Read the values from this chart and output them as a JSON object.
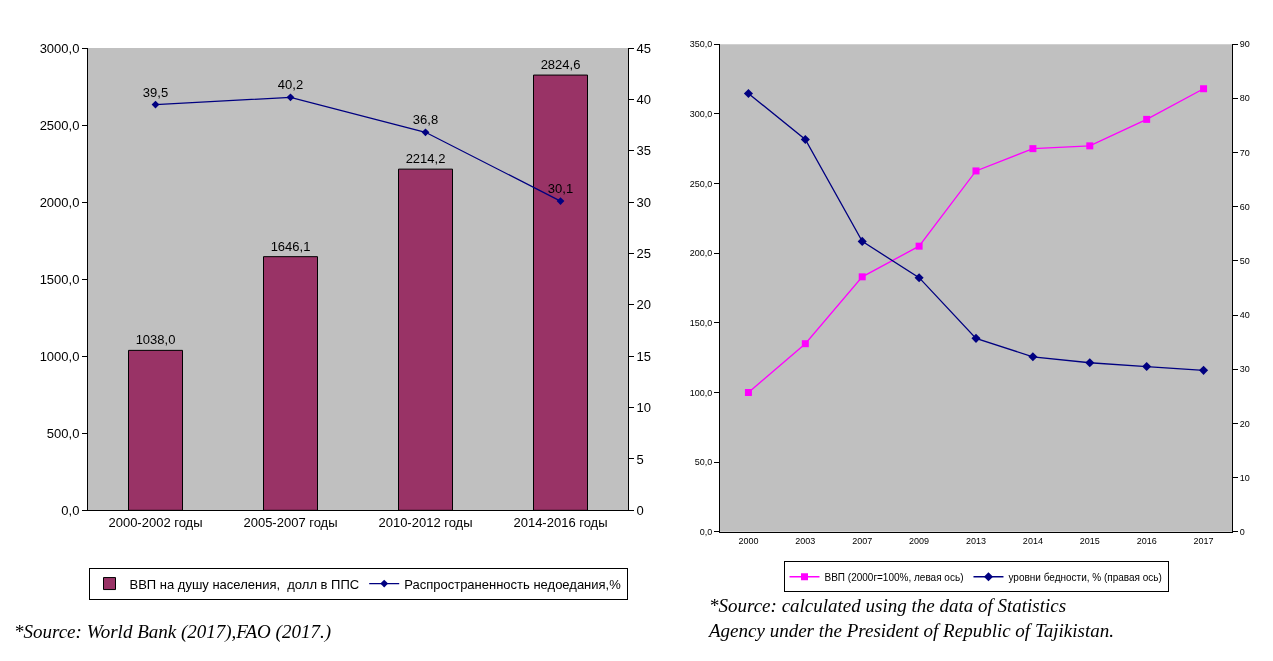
{
  "chart_data": [
    {
      "type": "bar",
      "categories": [
        "2000-2002 годы",
        "2005-2007 годы",
        "2010-2012 годы",
        "2014-2016 годы"
      ],
      "series": [
        {
          "name": "ВВП на душу населения,  долл в ППС",
          "color": "#993366",
          "values": [
            1038.0,
            1646.1,
            2214.2,
            2824.6
          ],
          "value_labels": [
            "1038,0",
            "1646,1",
            "2214,2",
            "2824,6"
          ]
        },
        {
          "name": "Распространенность недоедания,%",
          "type": "line",
          "axis": "y2",
          "color": "#000080",
          "marker": "diamond",
          "values": [
            39.5,
            40.2,
            36.8,
            30.1
          ],
          "value_labels": [
            "39,5",
            "40,2",
            "36,8",
            "30,1"
          ]
        }
      ],
      "ylim": [
        0,
        3000
      ],
      "yticks": [
        {
          "value": 0,
          "label": "0,0"
        },
        {
          "value": 500,
          "label": "500,0"
        },
        {
          "value": 1000,
          "label": "1000,0"
        },
        {
          "value": 1500,
          "label": "1500,0"
        },
        {
          "value": 2000,
          "label": "2000,0"
        },
        {
          "value": 2500,
          "label": "2500,0"
        },
        {
          "value": 3000,
          "label": "3000,0"
        }
      ],
      "y2lim": [
        0,
        45
      ],
      "y2ticks": [
        0,
        5,
        10,
        15,
        20,
        25,
        30,
        35,
        40,
        45
      ],
      "grid": false,
      "legend": "bottom",
      "annotations": [
        "*Source: World Bank (2017),FAO (2017.)"
      ]
    },
    {
      "type": "line",
      "categories": [
        "2000",
        "2003",
        "2007",
        "2009",
        "2013",
        "2014",
        "2015",
        "2016",
        "2017"
      ],
      "series": [
        {
          "name": "ВВП (2000г=100%, левая ось)",
          "color": "#ff00ff",
          "marker": "square",
          "values": [
            100,
            135,
            183,
            205,
            259,
            275,
            277,
            296,
            318
          ]
        },
        {
          "name": "уровни бедности, % (правая ось)",
          "axis": "y2",
          "color": "#000080",
          "marker": "diamond",
          "values": [
            80.9,
            72.4,
            53.6,
            46.9,
            35.7,
            32.3,
            31.2,
            30.5,
            29.8
          ]
        }
      ],
      "ylim": [
        0,
        350
      ],
      "yticks": [
        {
          "value": 0,
          "label": "0,0"
        },
        {
          "value": 50,
          "label": "50,0"
        },
        {
          "value": 100,
          "label": "100,0"
        },
        {
          "value": 150,
          "label": "150,0"
        },
        {
          "value": 200,
          "label": "200,0"
        },
        {
          "value": 250,
          "label": "250,0"
        },
        {
          "value": 300,
          "label": "300,0"
        },
        {
          "value": 350,
          "label": "350,0"
        }
      ],
      "y2lim": [
        0,
        90
      ],
      "y2ticks": [
        0,
        10,
        20,
        30,
        40,
        50,
        60,
        70,
        80,
        90
      ],
      "grid": false,
      "legend": "bottom",
      "annotations": [
        "*Source: calculated using the data of Statistics Agency under the President of Republic of Tajikistan."
      ]
    }
  ]
}
